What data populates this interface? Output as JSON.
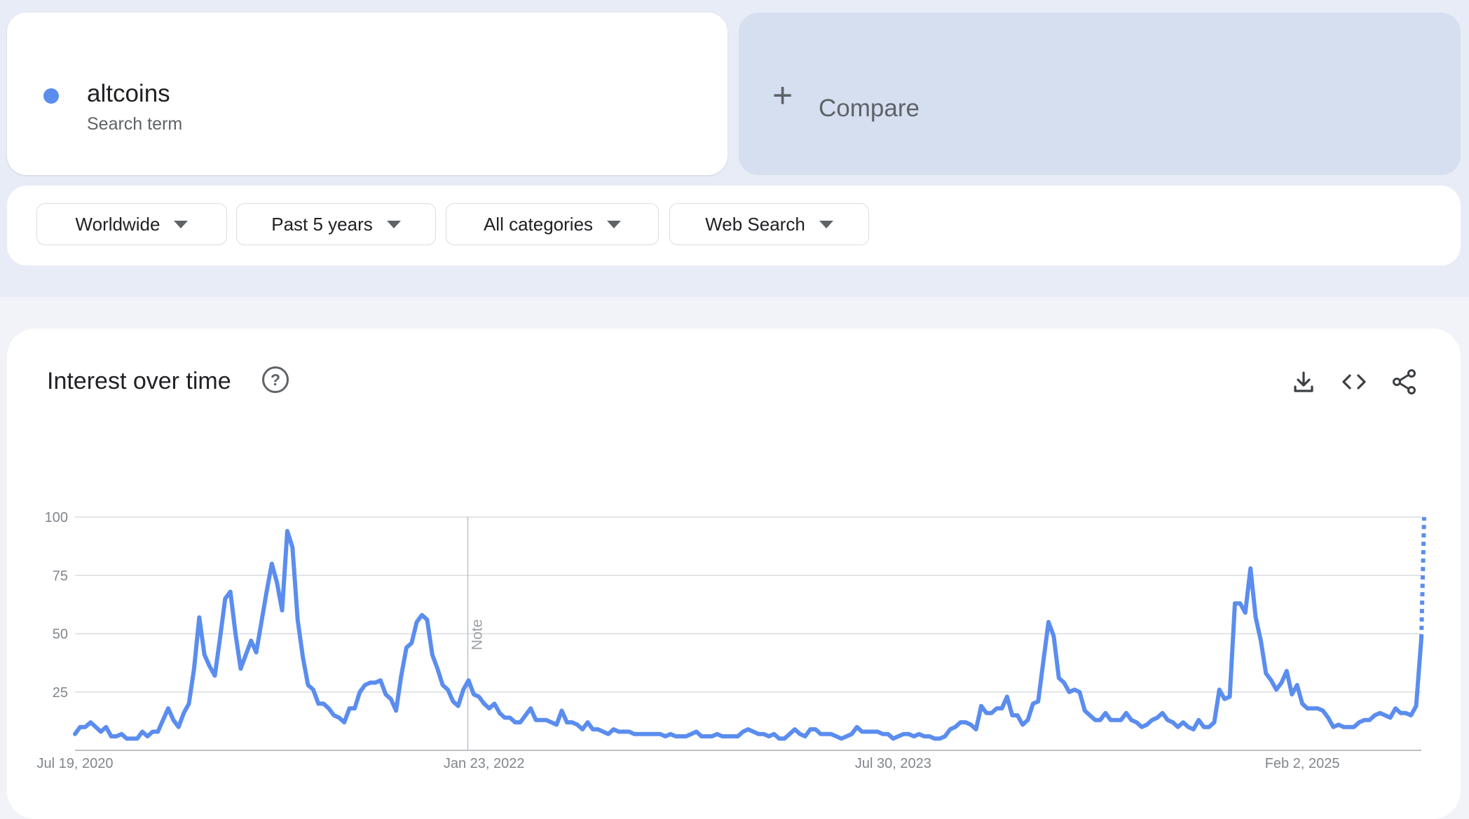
{
  "term": {
    "name": "altcoins",
    "type_label": "Search term",
    "color": "#5b8def"
  },
  "compare": {
    "plus_icon": "+",
    "label": "Compare"
  },
  "filters": {
    "region": "Worldwide",
    "time_range": "Past 5 years",
    "category": "All categories",
    "search_type": "Web Search"
  },
  "chart_section": {
    "title": "Interest over time",
    "icons": [
      "help-icon",
      "download-icon",
      "embed-icon",
      "share-icon"
    ]
  },
  "chart_data": {
    "type": "line",
    "series": [
      {
        "color": "#5b8def",
        "values": [
          7,
          10,
          10,
          12,
          10,
          8,
          10,
          6,
          6,
          7,
          5,
          5,
          5,
          8,
          6,
          8,
          8,
          13,
          18,
          13,
          10,
          16,
          20,
          35,
          57,
          41,
          36,
          32,
          48,
          65,
          68,
          50,
          35,
          41,
          47,
          42,
          55,
          68,
          80,
          72,
          60,
          94,
          87,
          56,
          40,
          28,
          26,
          20,
          20,
          18,
          15,
          14,
          12,
          18,
          18,
          25,
          28,
          29,
          29,
          30,
          24,
          22,
          17,
          32,
          44,
          46,
          55,
          58,
          56,
          41,
          35,
          28,
          26,
          21,
          19,
          26,
          30,
          24,
          23,
          20,
          18,
          20,
          16,
          14,
          14,
          12,
          12,
          15,
          18,
          13,
          13,
          13,
          12,
          11,
          17,
          12,
          12,
          11,
          9,
          12,
          9,
          9,
          8,
          7,
          9,
          8,
          8,
          8,
          7,
          7,
          7,
          7,
          7,
          7,
          6,
          7,
          6,
          6,
          6,
          7,
          8,
          6,
          6,
          6,
          7,
          6,
          6,
          6,
          6,
          8,
          9,
          8,
          7,
          7,
          6,
          7,
          5,
          5,
          7,
          9,
          7,
          6,
          9,
          9,
          7,
          7,
          7,
          6,
          5,
          6,
          7,
          10,
          8,
          8,
          8,
          8,
          7,
          7,
          5,
          6,
          7,
          7,
          6,
          7,
          6,
          6,
          5,
          5,
          6,
          9,
          10,
          12,
          12,
          11,
          9,
          19,
          16,
          16,
          18,
          18,
          23,
          15,
          15,
          11,
          13,
          20,
          21,
          38,
          55,
          49,
          31,
          29,
          25,
          26,
          25,
          17,
          15,
          13,
          13,
          16,
          13,
          13,
          13,
          16,
          13,
          12,
          10,
          11,
          13,
          14,
          16,
          13,
          12,
          10,
          12,
          10,
          9,
          13,
          10,
          10,
          12,
          26,
          22,
          23,
          63,
          63,
          59,
          78,
          57,
          47,
          33,
          30,
          26,
          29,
          34,
          24,
          28,
          20,
          18,
          18,
          18,
          17,
          14,
          10,
          11,
          10,
          10,
          10,
          12,
          13,
          13,
          15,
          16,
          15,
          14,
          18,
          16,
          16,
          15,
          19,
          48
        ],
        "partial_to": 100
      }
    ],
    "x_start": "2020-07-19",
    "x_end": "2025-07-13",
    "x_tick_labels": [
      "Jul 19, 2020",
      "Jan 23, 2022",
      "Jul 30, 2023",
      "Feb 2, 2025"
    ],
    "y_ticks": [
      25,
      50,
      75,
      100
    ],
    "ylim": [
      0,
      100
    ],
    "grid": true,
    "annotations": [
      {
        "date": "2022-01-01",
        "label": "Note"
      }
    ]
  }
}
